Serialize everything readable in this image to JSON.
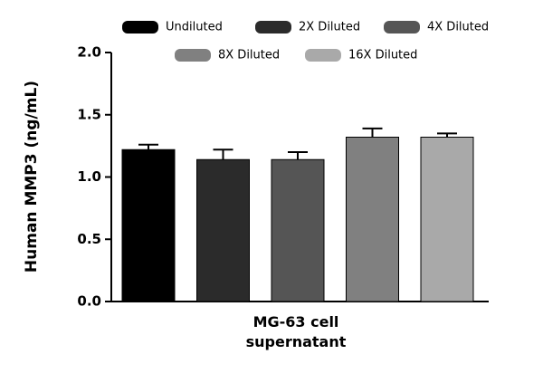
{
  "chart_data": {
    "type": "bar",
    "y_label": "Human MMP3 (ng/mL)",
    "categories": [
      "MG-63 cell supernatant"
    ],
    "series": [
      {
        "name": "Undiluted",
        "color": "#000000",
        "values": [
          1.22
        ],
        "errors": [
          0.04
        ]
      },
      {
        "name": "2X Diluted",
        "color": "#2b2b2b",
        "values": [
          1.14
        ],
        "errors": [
          0.08
        ]
      },
      {
        "name": "4X Diluted",
        "color": "#555555",
        "values": [
          1.14
        ],
        "errors": [
          0.06
        ]
      },
      {
        "name": "8X Diluted",
        "color": "#808080",
        "values": [
          1.32
        ],
        "errors": [
          0.07
        ]
      },
      {
        "name": "16X Diluted",
        "color": "#a9a9a9",
        "values": [
          1.32
        ],
        "errors": [
          0.03
        ]
      }
    ],
    "ylim": [
      0,
      2
    ],
    "yticks": [
      {
        "value": 0,
        "label": "0.0"
      },
      0.5,
      {
        "value": 1,
        "label": "1.0"
      },
      1.5,
      {
        "value": 2,
        "label": "2.0"
      }
    ]
  }
}
